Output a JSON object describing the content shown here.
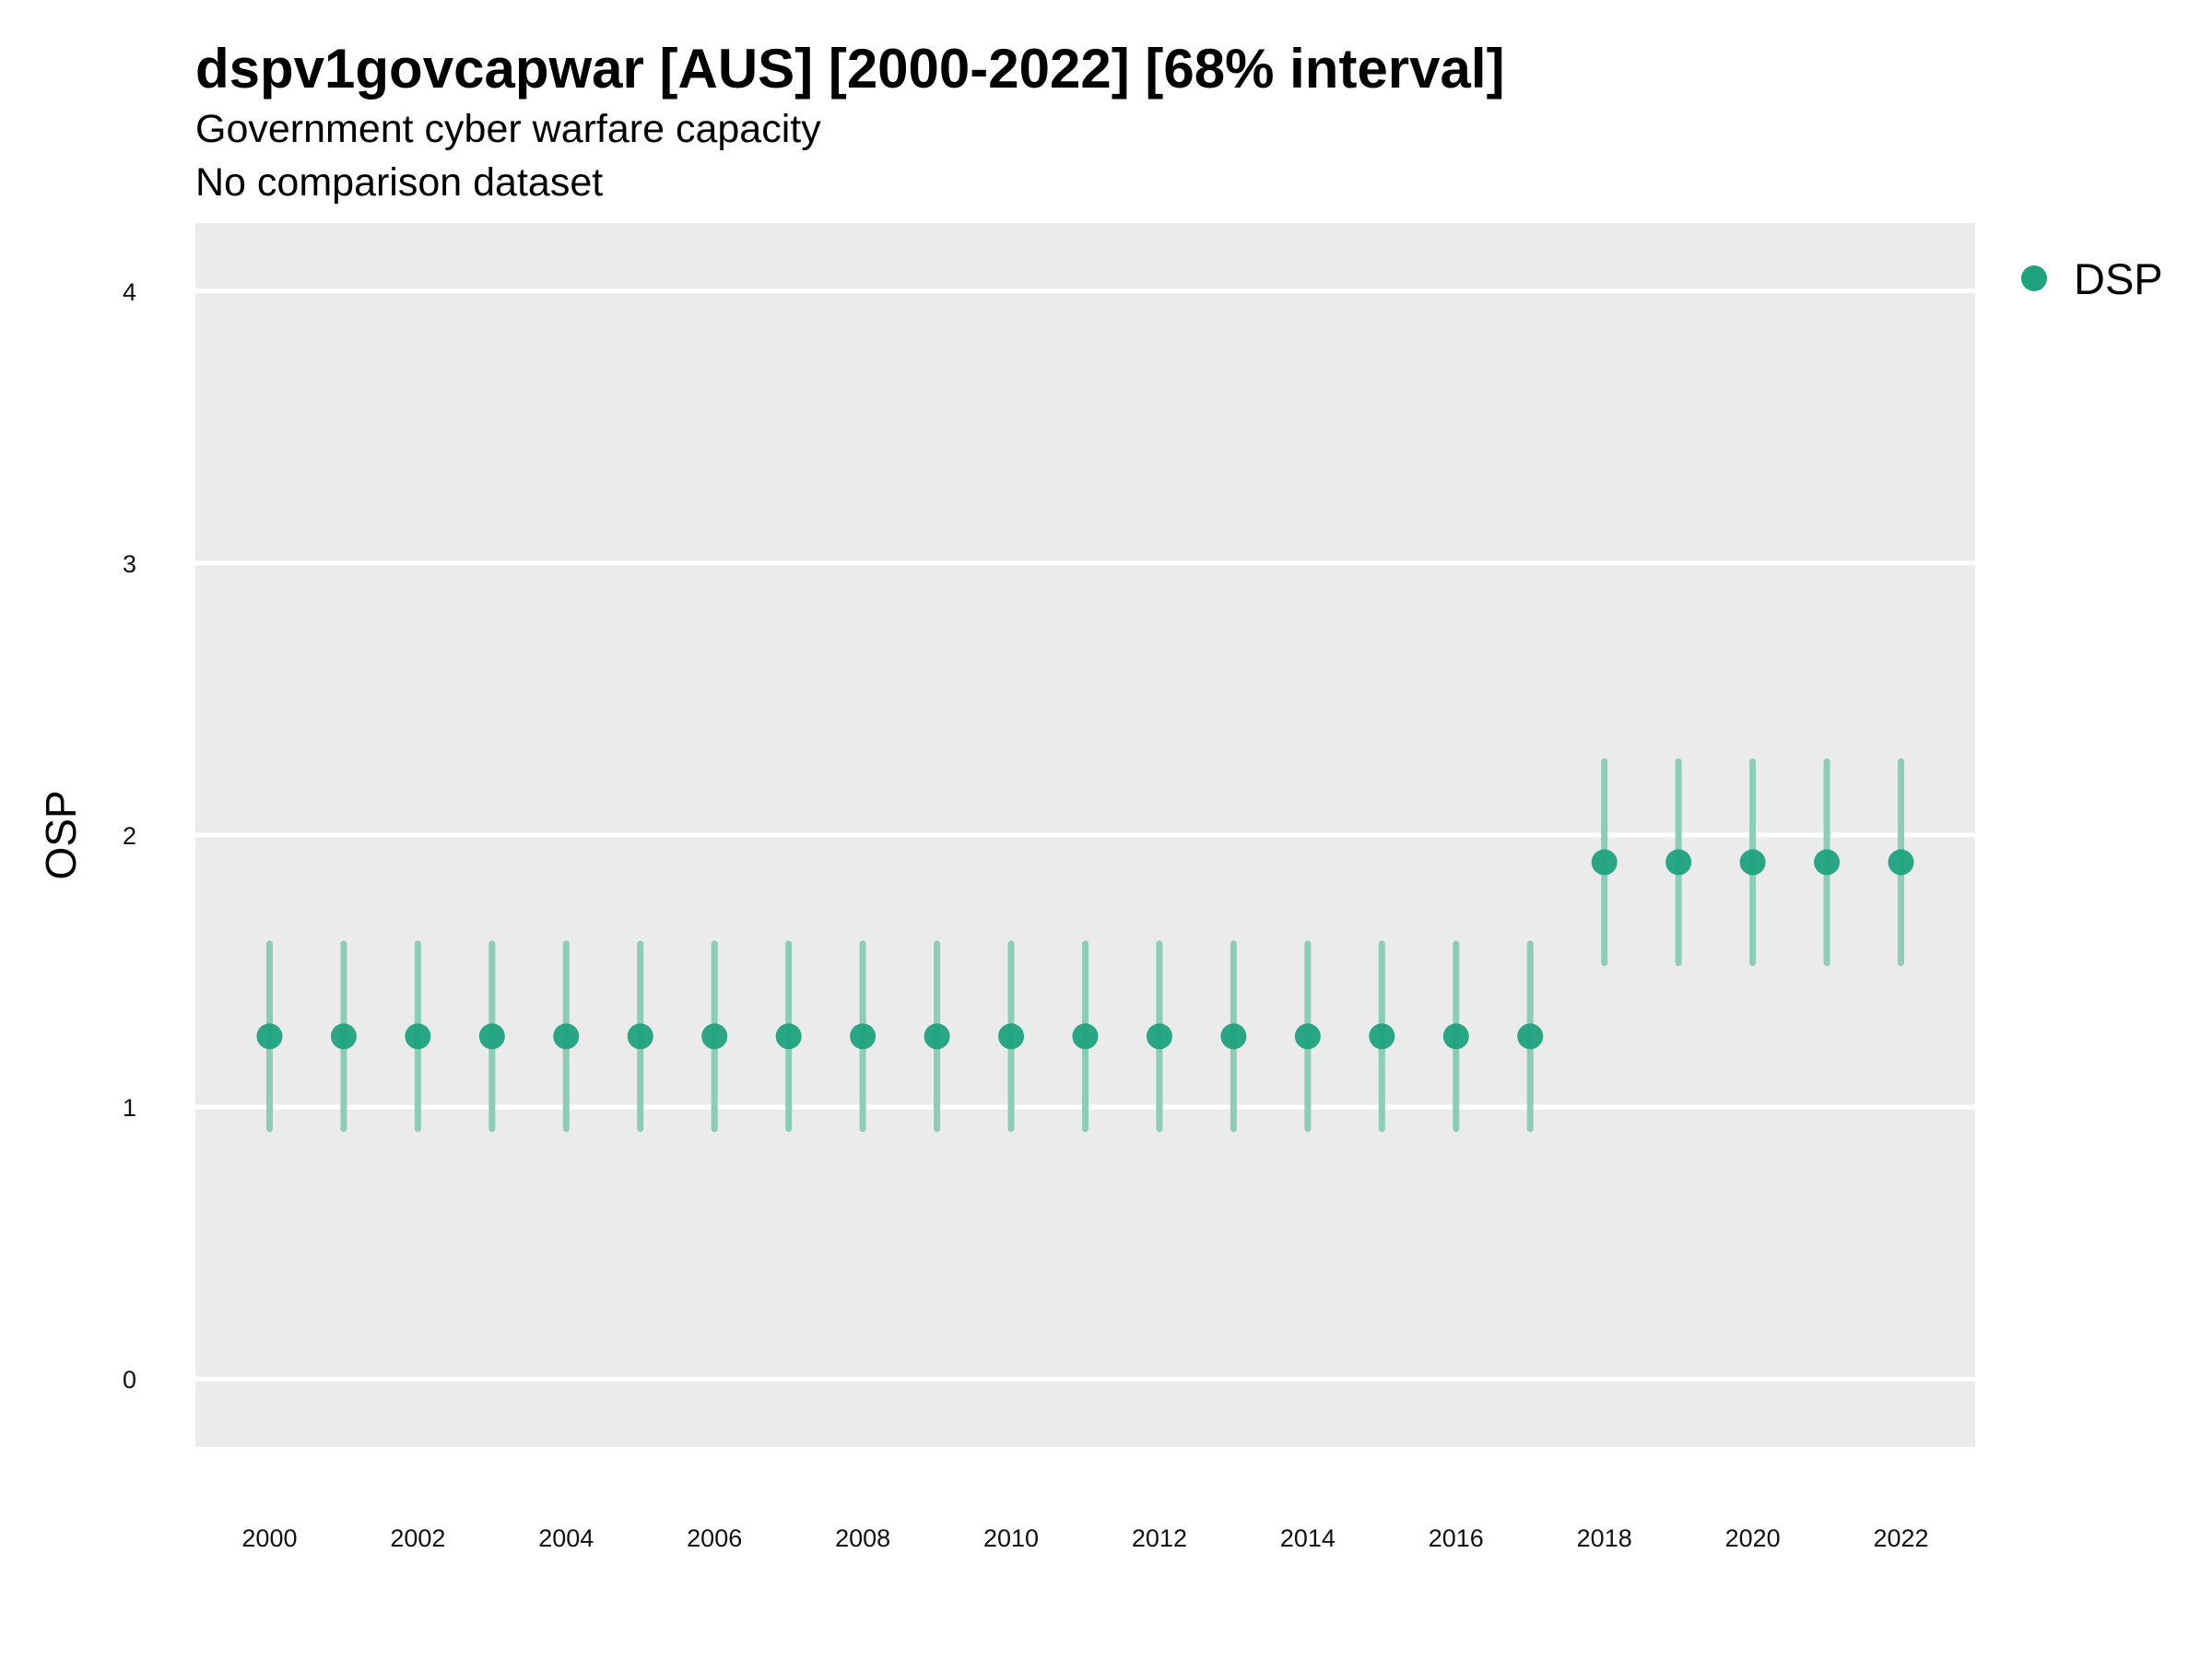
{
  "title": "dspv1govcapwar [AUS] [2000-2022] [68% interval]",
  "subtitle": "Government cyber warfare capacity",
  "caption": "No comparison dataset",
  "colors": {
    "point": "#1fa27e",
    "interval": "#8ccdb7",
    "panel": "#ebebeb",
    "grid": "#ffffff"
  },
  "chart_data": {
    "type": "scatter",
    "xlabel": "",
    "ylabel": "OSP",
    "ylim": [
      -0.25,
      4.25
    ],
    "xlim": [
      1999,
      2023
    ],
    "y_ticks": [
      0,
      1,
      2,
      3,
      4
    ],
    "x_ticks": [
      2000,
      2002,
      2004,
      2006,
      2008,
      2010,
      2012,
      2014,
      2016,
      2018,
      2020,
      2022
    ],
    "grid": true,
    "legend_position": "right",
    "series": [
      {
        "name": "DSP",
        "x": [
          2000,
          2001,
          2002,
          2003,
          2004,
          2005,
          2006,
          2007,
          2008,
          2009,
          2010,
          2011,
          2012,
          2013,
          2014,
          2015,
          2016,
          2017,
          2018,
          2019,
          2020,
          2021,
          2022
        ],
        "y": [
          1.26,
          1.26,
          1.26,
          1.26,
          1.26,
          1.26,
          1.26,
          1.26,
          1.26,
          1.26,
          1.26,
          1.26,
          1.26,
          1.26,
          1.26,
          1.26,
          1.26,
          1.26,
          1.9,
          1.9,
          1.9,
          1.9,
          1.9
        ],
        "lower": [
          0.92,
          0.92,
          0.92,
          0.92,
          0.92,
          0.92,
          0.92,
          0.92,
          0.92,
          0.92,
          0.92,
          0.92,
          0.92,
          0.92,
          0.92,
          0.92,
          0.92,
          0.92,
          1.53,
          1.53,
          1.53,
          1.53,
          1.53
        ],
        "upper": [
          1.6,
          1.6,
          1.6,
          1.6,
          1.6,
          1.6,
          1.6,
          1.6,
          1.6,
          1.6,
          1.6,
          1.6,
          1.6,
          1.6,
          1.6,
          1.6,
          1.6,
          1.6,
          2.27,
          2.27,
          2.27,
          2.27,
          2.27
        ]
      }
    ]
  }
}
